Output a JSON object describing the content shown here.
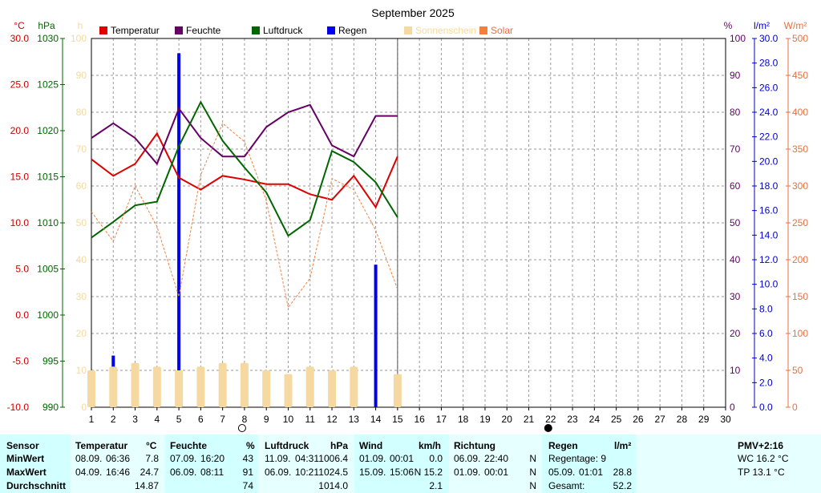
{
  "chart_data": {
    "type": "line",
    "title": "September 2025",
    "x": [
      1,
      2,
      3,
      4,
      5,
      6,
      7,
      8,
      9,
      10,
      11,
      12,
      13,
      14,
      15,
      16,
      17,
      18,
      19,
      20,
      21,
      22,
      23,
      24,
      25,
      26,
      27,
      28,
      29,
      30
    ],
    "xlim": [
      1,
      30
    ],
    "axes": {
      "temp": {
        "unit": "°C",
        "ticks": [
          "30.0",
          "25.0",
          "20.0",
          "15.0",
          "10.0",
          "5.0",
          "0.0",
          "-5.0",
          "-10.0"
        ],
        "range": [
          -10,
          30
        ],
        "color": "#cc0000"
      },
      "pressure": {
        "unit": "hPa",
        "ticks": [
          "1030",
          "1025",
          "1020",
          "1015",
          "1010",
          "1005",
          "1000",
          "995",
          "990"
        ],
        "range": [
          990,
          1030
        ],
        "color": "#006600"
      },
      "hours": {
        "unit": "h",
        "ticks": [
          "100",
          "90",
          "80",
          "70",
          "60",
          "50",
          "40",
          "30",
          "20",
          "10",
          "0"
        ],
        "range": [
          0,
          100
        ],
        "color": "#f5d9a0"
      },
      "humidity": {
        "unit": "%",
        "ticks": [
          "100",
          "90",
          "80",
          "70",
          "60",
          "50",
          "40",
          "30",
          "20",
          "10",
          "0"
        ],
        "range": [
          0,
          100
        ],
        "color": "#660066"
      },
      "rain": {
        "unit": "l/m²",
        "ticks": [
          "30.0",
          "28.0",
          "26.0",
          "24.0",
          "22.0",
          "20.0",
          "18.0",
          "16.0",
          "14.0",
          "12.0",
          "10.0",
          "8.0",
          "6.0",
          "4.0",
          "2.0",
          "0.0"
        ],
        "range": [
          0,
          30
        ],
        "color": "#0000cc"
      },
      "solar": {
        "unit": "W/m²",
        "ticks": [
          "500",
          "450",
          "400",
          "350",
          "300",
          "250",
          "200",
          "150",
          "100",
          "50",
          "0"
        ],
        "range": [
          0,
          500
        ],
        "color": "#e87040"
      }
    },
    "legend": [
      {
        "name": "Temperatur",
        "color": "#dd0000"
      },
      {
        "name": "Feuchte",
        "color": "#660066"
      },
      {
        "name": "Luftdruck",
        "color": "#006600"
      },
      {
        "name": "Regen",
        "color": "#0000ee"
      },
      {
        "name": "Sonnenschein",
        "color": "#f5d9a0"
      },
      {
        "name": "Solar",
        "color": "#f08040"
      }
    ],
    "series": [
      {
        "name": "Temperatur",
        "axis": "temp",
        "color": "#dd0000",
        "x": [
          1,
          2,
          3,
          4,
          5,
          6,
          7,
          8,
          9,
          10,
          11,
          12,
          13,
          14,
          15
        ],
        "values": [
          16.9,
          15.1,
          16.4,
          19.7,
          14.9,
          13.6,
          15.1,
          14.7,
          14.2,
          14.2,
          13.1,
          12.5,
          15.1,
          11.7,
          17.2
        ]
      },
      {
        "name": "Feuchte",
        "axis": "humidity",
        "color": "#660066",
        "x": [
          1,
          2,
          3,
          4,
          5,
          6,
          7,
          8,
          9,
          10,
          11,
          12,
          13,
          14,
          15
        ],
        "values": [
          73,
          77,
          73,
          66,
          81,
          73,
          68,
          68,
          76,
          80,
          82,
          71,
          68,
          79,
          79
        ]
      },
      {
        "name": "Luftdruck",
        "axis": "pressure",
        "color": "#006600",
        "x": [
          1,
          2,
          3,
          4,
          5,
          6,
          7,
          8,
          9,
          10,
          11,
          12,
          13,
          14,
          15
        ],
        "values": [
          1008.4,
          1010.1,
          1011.9,
          1012.3,
          1018.3,
          1023.1,
          1018.9,
          1016.0,
          1013.3,
          1008.6,
          1010.3,
          1017.8,
          1016.6,
          1014.4,
          1010.6
        ]
      },
      {
        "name": "Regen",
        "axis": "rain",
        "type": "bar",
        "color": "#0000ee",
        "x": [
          2,
          3,
          5,
          9,
          10,
          11,
          12,
          14,
          15
        ],
        "values": [
          4.2,
          0.4,
          28.8,
          1.2,
          1.8,
          1.4,
          1.0,
          11.6,
          1.8
        ]
      },
      {
        "name": "Sonnenschein",
        "axis": "hours",
        "type": "bar",
        "color": "#f5d9a0",
        "x": [
          1,
          2,
          3,
          4,
          5,
          6,
          7,
          8,
          9,
          10,
          11,
          12,
          13,
          14,
          15
        ],
        "values": [
          10,
          11,
          12,
          11,
          10,
          11,
          12,
          12,
          10,
          9,
          11,
          10,
          11,
          0,
          9
        ]
      },
      {
        "name": "Solar",
        "axis": "solar",
        "color": "#f08040",
        "dashed": true,
        "x": [
          1,
          2,
          3,
          4,
          5,
          6,
          7,
          8,
          9,
          10,
          11,
          12,
          13,
          14,
          15
        ],
        "values": [
          265,
          225,
          300,
          245,
          150,
          315,
          385,
          360,
          280,
          135,
          175,
          310,
          295,
          240,
          160
        ]
      }
    ],
    "moon": [
      {
        "x": 8,
        "phase": "full"
      },
      {
        "x": 22,
        "phase": "new"
      }
    ]
  },
  "stats": {
    "sensor": {
      "header": "Sensor",
      "min": "MinWert",
      "max": "MaxWert",
      "avg": "Durchschnitt"
    },
    "temperatur": {
      "header": "Temperatur",
      "unit": "°C",
      "min_date": "08.09.",
      "min_time": "06:36",
      "min_val": "7.8",
      "max_date": "04.09.",
      "max_time": "16:46",
      "max_val": "24.7",
      "avg": "14.87"
    },
    "feuchte": {
      "header": "Feuchte",
      "unit": "%",
      "min_date": "07.09.",
      "min_time": "16:20",
      "min_val": "43",
      "max_date": "06.09.",
      "max_time": "08:11",
      "max_val": "91",
      "avg": "74"
    },
    "luftdruck": {
      "header": "Luftdruck",
      "unit": "hPa",
      "min_date": "11.09.",
      "min_time": "04:31",
      "min_val": "1006.4",
      "max_date": "06.09.",
      "max_time": "10:21",
      "max_val": "1024.5",
      "avg": "1014.0"
    },
    "wind": {
      "header": "Wind",
      "unit": "km/h",
      "min_date": "01.09.",
      "min_time": "00:01",
      "min_val": "0.0",
      "max_date": "15.09.",
      "max_time": "15:06",
      "max_val": "N 15.2",
      "avg": "2.1"
    },
    "richtung": {
      "header": "Richtung",
      "min_date": "06.09.",
      "min_time": "22:40",
      "min_val": "N",
      "max_date": "01.09.",
      "max_time": "00:01",
      "max_val": "N",
      "avg": "N"
    },
    "regen": {
      "header": "Regen",
      "unit": "l/m²",
      "regentage": "Regentage: 9",
      "max_date": "05.09.",
      "max_time": "01:01",
      "max_val": "28.8",
      "gesamt_label": "Gesamt:",
      "gesamt_val": "52.2"
    },
    "pmv": {
      "header": "PMV+2:16",
      "wc": "WC 16.2 °C",
      "tp": "TP 13.1 °C"
    }
  }
}
